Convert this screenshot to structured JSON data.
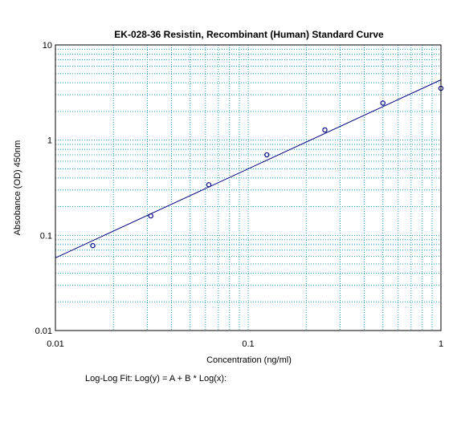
{
  "chart_data": {
    "type": "scatter",
    "title": "EK-028-36 Resistin, Recombinant (Human) Standard Curve",
    "xlabel": "Concentration (ng/ml)",
    "ylabel": "Absobance (OD) 450nm",
    "x_scale": "log",
    "y_scale": "log",
    "xlim": [
      0.01,
      1
    ],
    "ylim": [
      0.01,
      10
    ],
    "x_ticks": [
      "0.01",
      "0.1",
      "1"
    ],
    "y_ticks": [
      "10",
      "1",
      "0.1",
      "0.01"
    ],
    "grid": true,
    "series": [
      {
        "points": [
          {
            "x": 0.015625,
            "y": 0.078
          },
          {
            "x": 0.03125,
            "y": 0.16
          },
          {
            "x": 0.0625,
            "y": 0.34
          },
          {
            "x": 0.125,
            "y": 0.7
          },
          {
            "x": 0.25,
            "y": 1.28
          },
          {
            "x": 0.5,
            "y": 2.45
          },
          {
            "x": 1.0,
            "y": 3.5
          }
        ]
      }
    ],
    "fit": {
      "type": "log-log",
      "label": "Log-Log Fit: Log(y) = A + B * Log(x):",
      "line": [
        {
          "x": 0.01,
          "y": 0.058
        },
        {
          "x": 1.0,
          "y": 4.3
        }
      ]
    },
    "colors": {
      "grid": "#1f9bbf",
      "marker": "#000080",
      "fit_line": "#000080",
      "frame": "#000000"
    }
  }
}
